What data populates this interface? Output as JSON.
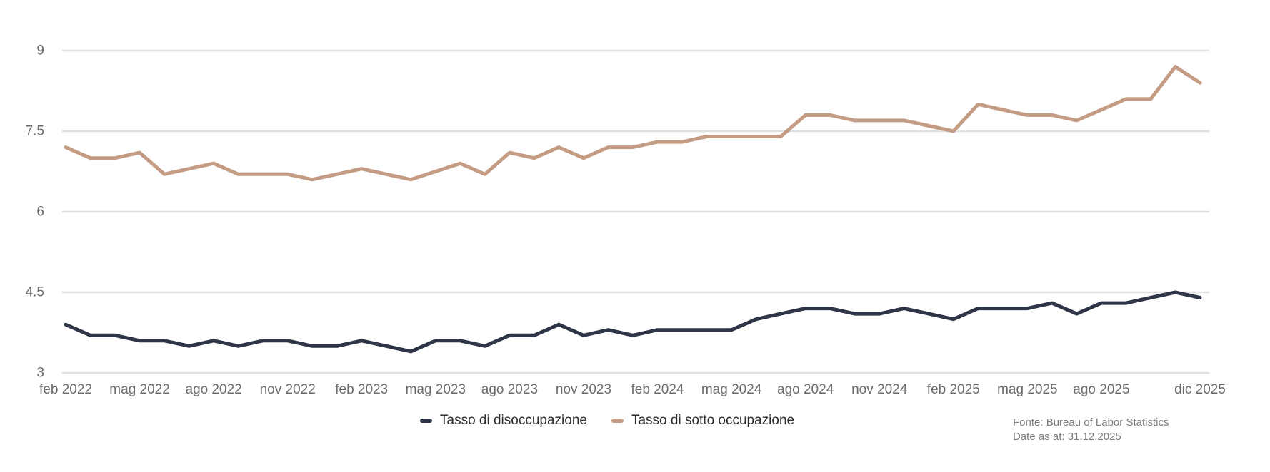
{
  "chart_data": {
    "type": "line",
    "title": "",
    "xlabel": "",
    "ylabel": "",
    "ylim": [
      3,
      9
    ],
    "y_ticks": [
      3,
      4.5,
      6,
      7.5,
      9
    ],
    "grid": "horizontal",
    "legend_position": "bottom",
    "x_label_indices": [
      0,
      3,
      6,
      9,
      12,
      15,
      18,
      21,
      24,
      27,
      30,
      33,
      36,
      39,
      42,
      46
    ],
    "categories": [
      "feb 2022",
      "mar 2022",
      "apr 2022",
      "mag 2022",
      "giu 2022",
      "lug 2022",
      "ago 2022",
      "set 2022",
      "ott 2022",
      "nov 2022",
      "dic 2022",
      "gen 2023",
      "feb 2023",
      "mar 2023",
      "apr 2023",
      "mag 2023",
      "giu 2023",
      "lug 2023",
      "ago 2023",
      "set 2023",
      "ott 2023",
      "nov 2023",
      "dic 2023",
      "gen 2024",
      "feb 2024",
      "mar 2024",
      "apr 2024",
      "mag 2024",
      "giu 2024",
      "lug 2024",
      "ago 2024",
      "set 2024",
      "ott 2024",
      "nov 2024",
      "dic 2024",
      "gen 2025",
      "feb 2025",
      "mar 2025",
      "apr 2025",
      "mag 2025",
      "giu 2025",
      "lug 2025",
      "ago 2025",
      "set 2025",
      "ott 2025",
      "nov 2025",
      "dic 2025"
    ],
    "series": [
      {
        "name": "Tasso di disoccupazione",
        "color": "#2e3546",
        "values": [
          3.9,
          3.7,
          3.7,
          3.6,
          3.6,
          3.5,
          3.6,
          3.5,
          3.6,
          3.6,
          3.5,
          3.5,
          3.6,
          3.5,
          3.4,
          3.6,
          3.6,
          3.5,
          3.7,
          3.7,
          3.9,
          3.7,
          3.8,
          3.7,
          3.8,
          3.8,
          3.8,
          3.8,
          4.0,
          4.1,
          4.2,
          4.2,
          4.1,
          4.1,
          4.2,
          4.1,
          4.0,
          4.2,
          4.2,
          4.2,
          4.3,
          4.1,
          4.3,
          4.3,
          4.4,
          4.5,
          4.4
        ]
      },
      {
        "name": "Tasso di sotto occupazione",
        "color": "#c49b83",
        "values": [
          7.2,
          7.0,
          7.0,
          7.1,
          6.7,
          6.8,
          6.9,
          6.7,
          6.7,
          6.7,
          6.6,
          6.7,
          6.8,
          6.7,
          6.6,
          6.75,
          6.9,
          6.7,
          7.1,
          7.0,
          7.2,
          7.0,
          7.2,
          7.2,
          7.3,
          7.3,
          7.4,
          7.4,
          7.4,
          7.4,
          7.8,
          7.8,
          7.7,
          7.7,
          7.7,
          7.6,
          7.5,
          8.0,
          7.9,
          7.8,
          7.8,
          7.7,
          7.9,
          8.1,
          8.1,
          8.7,
          8.4
        ]
      }
    ],
    "colors": {
      "gridline": "#e0e0e0",
      "tick_label": "#6b6b6b",
      "background": "#ffffff"
    }
  },
  "source": {
    "line1": "Fonte: Bureau of Labor Statistics",
    "line2": "Date as at: 31.12.2025"
  }
}
